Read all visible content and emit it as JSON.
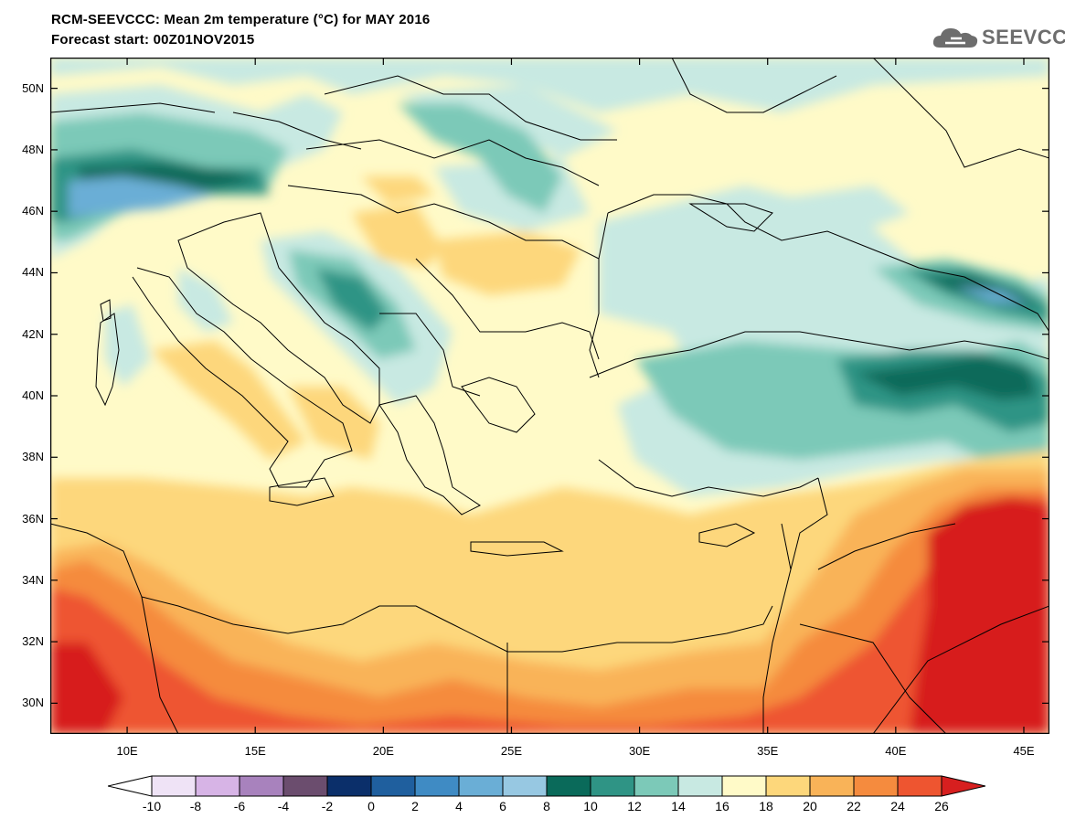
{
  "title": {
    "line1": "RCM-SEEVCCC: Mean 2m temperature (°C) for MAY 2016",
    "line2": "Forecast start: 00Z01NOV2015"
  },
  "logo": {
    "text": "SEEVCCC",
    "icon": "cloud-logo-icon"
  },
  "map": {
    "lat_labels": [
      "50N",
      "48N",
      "46N",
      "44N",
      "42N",
      "40N",
      "38N",
      "36N",
      "34N",
      "32N",
      "30N"
    ],
    "lon_labels": [
      "10E",
      "15E",
      "20E",
      "25E",
      "30E",
      "35E",
      "40E",
      "45E"
    ],
    "lat_range": [
      29,
      51
    ],
    "lon_range": [
      7,
      46
    ]
  },
  "colorbar": {
    "labels": [
      "-10",
      "-8",
      "-6",
      "-4",
      "-2",
      "0",
      "2",
      "4",
      "6",
      "8",
      "10",
      "12",
      "14",
      "16",
      "18",
      "20",
      "22",
      "24",
      "26"
    ],
    "colors": [
      "#ffffff",
      "#efe3f6",
      "#d7b4e6",
      "#a882bd",
      "#6b4d6e",
      "#0b2f6a",
      "#1f5f9e",
      "#3f8bc4",
      "#6aaed6",
      "#97c8e2",
      "#0a6a5a",
      "#2f9485",
      "#7cc9b8",
      "#c8e9e2",
      "#fffac8",
      "#fdd77b",
      "#f9b358",
      "#f58b3e",
      "#ee5530",
      "#d71f1f"
    ]
  }
}
